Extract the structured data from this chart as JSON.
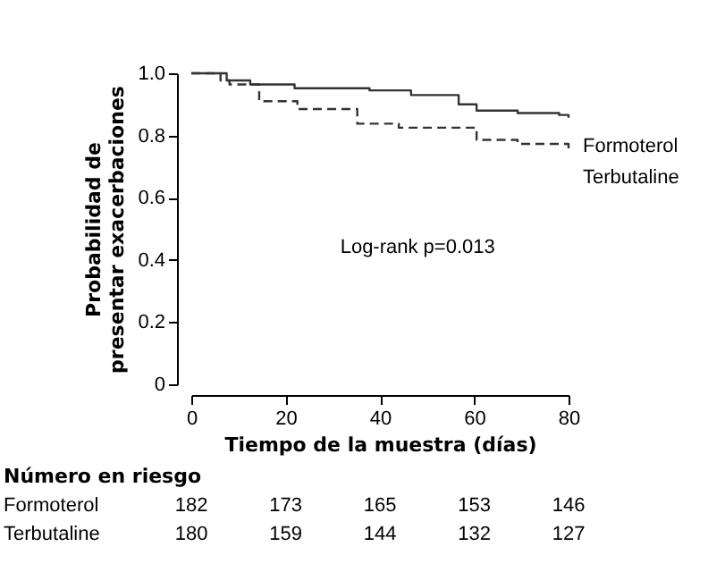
{
  "chart_data": {
    "type": "step",
    "xlabel": "Tiempo de la muestra (días)",
    "ylabel": "Probabilidad de presentar exacerbaciones",
    "xlim": [
      0,
      80
    ],
    "xticks": [
      0,
      20,
      40,
      60,
      80
    ],
    "ylim": [
      0,
      1
    ],
    "yticks": [
      {
        "value": 0,
        "label": "0"
      },
      0.2,
      0.4,
      0.6,
      0.8,
      {
        "value": 1,
        "label": "1.0"
      }
    ],
    "grid": false,
    "legend": false,
    "series": [
      {
        "name": "Formoterol",
        "color": "#333333",
        "line_style": "solid",
        "x": [
          0,
          7.5,
          12.5,
          20.7,
          21.9,
          37.8,
          46.6,
          56.7,
          60.5,
          69.2,
          78,
          80
        ],
        "values": [
          1,
          0.977,
          0.964,
          0.964,
          0.952,
          0.945,
          0.93,
          0.9,
          0.88,
          0.872,
          0.866,
          0.857
        ]
      },
      {
        "name": "Terbutaline",
        "color": "#333333",
        "line_style": "dashed",
        "x": [
          0,
          6.2,
          8.1,
          14.4,
          22.5,
          35.2,
          44,
          60.5,
          69.2,
          80
        ],
        "values": [
          1,
          0.977,
          0.964,
          0.91,
          0.885,
          0.838,
          0.825,
          0.786,
          0.773,
          0.757
        ]
      }
    ],
    "annotations": [
      "Log-rank p=0.013",
      "Número en riesgo",
      "182",
      "173",
      "165",
      "153",
      "146",
      "180",
      "159",
      "144",
      "132",
      "127"
    ]
  }
}
